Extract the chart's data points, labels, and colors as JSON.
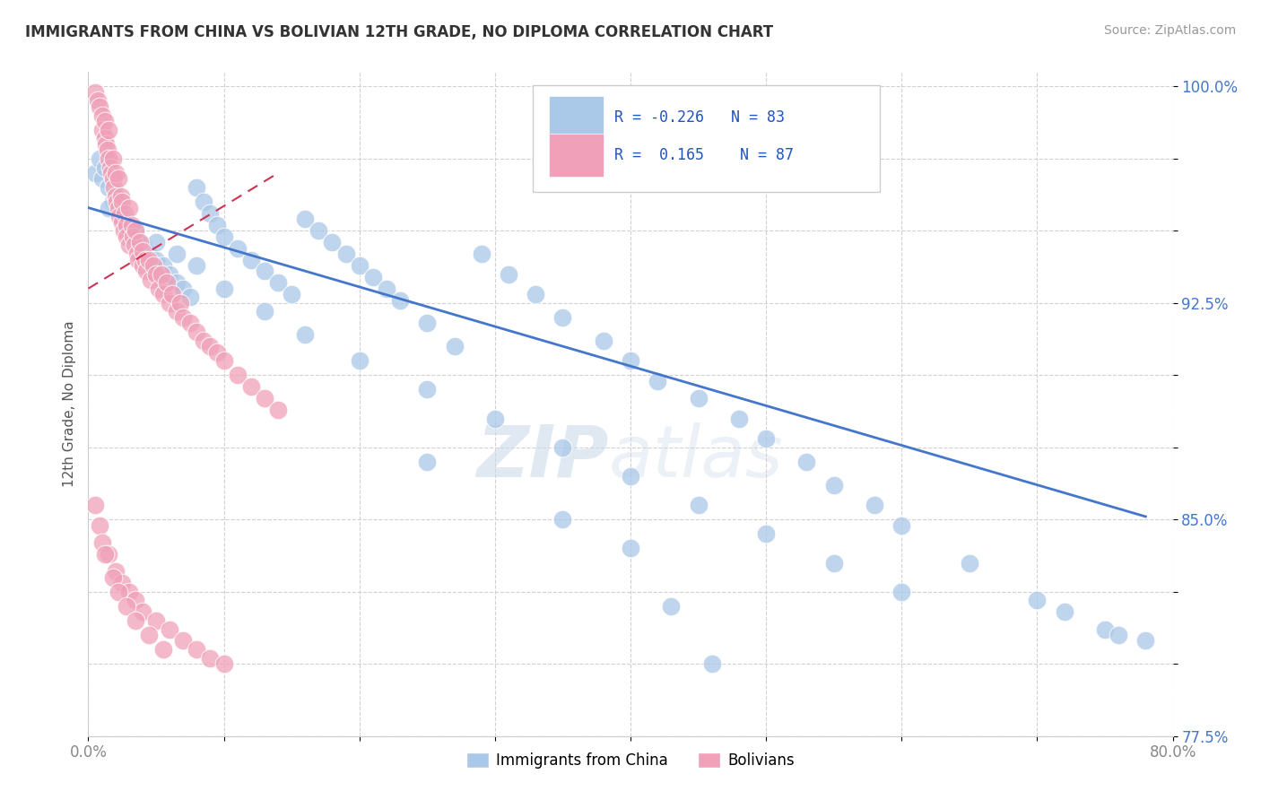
{
  "title": "IMMIGRANTS FROM CHINA VS BOLIVIAN 12TH GRADE, NO DIPLOMA CORRELATION CHART",
  "source": "Source: ZipAtlas.com",
  "ylabel": "12th Grade, No Diploma",
  "legend_labels": [
    "Immigrants from China",
    "Bolivians"
  ],
  "china_R": "-0.226",
  "china_N": "83",
  "bolivia_R": "0.165",
  "bolivia_N": "87",
  "xmin": 0.0,
  "xmax": 0.8,
  "ymin": 0.775,
  "ymax": 1.005,
  "china_color": "#aac8e8",
  "bolivia_color": "#f0a0b8",
  "china_line_color": "#4477cc",
  "bolivia_line_color": "#cc3355",
  "background_color": "#ffffff",
  "watermark_zip": "ZIP",
  "watermark_atlas": "atlas",
  "china_scatter_x": [
    0.005,
    0.008,
    0.01,
    0.012,
    0.015,
    0.018,
    0.02,
    0.022,
    0.025,
    0.028,
    0.03,
    0.035,
    0.04,
    0.045,
    0.05,
    0.055,
    0.06,
    0.065,
    0.07,
    0.075,
    0.08,
    0.085,
    0.09,
    0.095,
    0.1,
    0.11,
    0.12,
    0.13,
    0.14,
    0.15,
    0.16,
    0.17,
    0.18,
    0.19,
    0.2,
    0.21,
    0.22,
    0.23,
    0.25,
    0.27,
    0.29,
    0.31,
    0.33,
    0.35,
    0.38,
    0.4,
    0.42,
    0.45,
    0.48,
    0.5,
    0.53,
    0.55,
    0.58,
    0.6,
    0.65,
    0.7,
    0.72,
    0.75,
    0.76,
    0.78,
    0.015,
    0.025,
    0.035,
    0.05,
    0.065,
    0.08,
    0.1,
    0.13,
    0.16,
    0.2,
    0.25,
    0.3,
    0.35,
    0.4,
    0.45,
    0.5,
    0.55,
    0.6,
    0.25,
    0.35,
    0.4,
    0.43,
    0.46
  ],
  "china_scatter_y": [
    0.97,
    0.975,
    0.968,
    0.972,
    0.965,
    0.96,
    0.963,
    0.958,
    0.955,
    0.952,
    0.95,
    0.948,
    0.945,
    0.942,
    0.94,
    0.938,
    0.935,
    0.932,
    0.93,
    0.927,
    0.965,
    0.96,
    0.956,
    0.952,
    0.948,
    0.944,
    0.94,
    0.936,
    0.932,
    0.928,
    0.954,
    0.95,
    0.946,
    0.942,
    0.938,
    0.934,
    0.93,
    0.926,
    0.918,
    0.91,
    0.942,
    0.935,
    0.928,
    0.92,
    0.912,
    0.905,
    0.898,
    0.892,
    0.885,
    0.878,
    0.87,
    0.862,
    0.855,
    0.848,
    0.835,
    0.822,
    0.818,
    0.812,
    0.81,
    0.808,
    0.958,
    0.954,
    0.95,
    0.946,
    0.942,
    0.938,
    0.93,
    0.922,
    0.914,
    0.905,
    0.895,
    0.885,
    0.875,
    0.865,
    0.855,
    0.845,
    0.835,
    0.825,
    0.87,
    0.85,
    0.84,
    0.82,
    0.8
  ],
  "bolivia_scatter_x": [
    0.005,
    0.007,
    0.008,
    0.01,
    0.01,
    0.012,
    0.012,
    0.013,
    0.014,
    0.015,
    0.015,
    0.016,
    0.017,
    0.018,
    0.018,
    0.019,
    0.02,
    0.02,
    0.021,
    0.022,
    0.022,
    0.023,
    0.024,
    0.025,
    0.025,
    0.026,
    0.027,
    0.028,
    0.028,
    0.03,
    0.03,
    0.032,
    0.033,
    0.034,
    0.035,
    0.036,
    0.037,
    0.038,
    0.04,
    0.04,
    0.042,
    0.043,
    0.045,
    0.046,
    0.048,
    0.05,
    0.052,
    0.054,
    0.055,
    0.058,
    0.06,
    0.062,
    0.065,
    0.068,
    0.07,
    0.075,
    0.08,
    0.085,
    0.09,
    0.095,
    0.1,
    0.11,
    0.12,
    0.13,
    0.14,
    0.005,
    0.008,
    0.01,
    0.015,
    0.02,
    0.025,
    0.03,
    0.035,
    0.04,
    0.05,
    0.06,
    0.07,
    0.08,
    0.09,
    0.1,
    0.012,
    0.018,
    0.022,
    0.028,
    0.035,
    0.045,
    0.055
  ],
  "bolivia_scatter_y": [
    0.998,
    0.995,
    0.993,
    0.99,
    0.985,
    0.988,
    0.982,
    0.98,
    0.978,
    0.985,
    0.975,
    0.972,
    0.97,
    0.975,
    0.968,
    0.965,
    0.97,
    0.962,
    0.96,
    0.968,
    0.958,
    0.955,
    0.962,
    0.96,
    0.953,
    0.95,
    0.956,
    0.952,
    0.948,
    0.958,
    0.945,
    0.952,
    0.948,
    0.945,
    0.95,
    0.942,
    0.94,
    0.946,
    0.943,
    0.938,
    0.94,
    0.936,
    0.94,
    0.933,
    0.938,
    0.935,
    0.93,
    0.935,
    0.928,
    0.932,
    0.925,
    0.928,
    0.922,
    0.925,
    0.92,
    0.918,
    0.915,
    0.912,
    0.91,
    0.908,
    0.905,
    0.9,
    0.896,
    0.892,
    0.888,
    0.855,
    0.848,
    0.842,
    0.838,
    0.832,
    0.828,
    0.825,
    0.822,
    0.818,
    0.815,
    0.812,
    0.808,
    0.805,
    0.802,
    0.8,
    0.838,
    0.83,
    0.825,
    0.82,
    0.815,
    0.81,
    0.805
  ],
  "china_line_x": [
    0.0,
    0.78
  ],
  "china_line_y": [
    0.958,
    0.851
  ],
  "bolivia_line_x": [
    0.0,
    0.14
  ],
  "bolivia_line_y": [
    0.93,
    0.97
  ]
}
